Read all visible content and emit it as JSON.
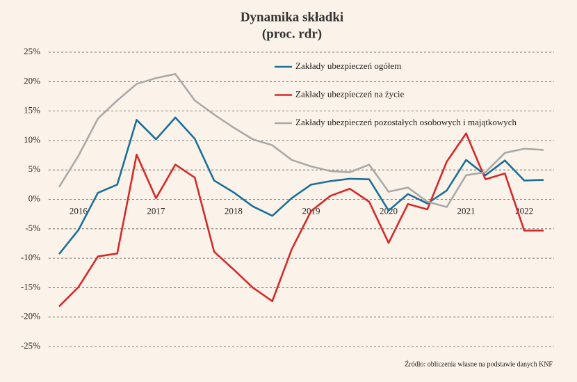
{
  "chart_data": {
    "type": "line",
    "title": "Dynamika składki",
    "subtitle": "(proc. rdr)",
    "source": "Źródło: obliczenia własne na podstawie danych KNF",
    "categories": [
      null,
      "2016",
      null,
      null,
      null,
      "2017",
      null,
      null,
      null,
      "2018",
      null,
      null,
      null,
      "2019",
      null,
      null,
      null,
      "2020",
      null,
      null,
      null,
      "2021",
      null,
      null,
      "2022",
      null
    ],
    "series": [
      {
        "name": "Zakłady ubezpieczeń ogółem",
        "color": "#1b6f98",
        "values": [
          -9.3,
          -5.2,
          1.1,
          2.5,
          13.5,
          10.2,
          13.9,
          10.3,
          3.2,
          1.2,
          -1.2,
          -2.8,
          0.2,
          2.5,
          3.1,
          3.5,
          3.4,
          -1.9,
          0.9,
          -0.7,
          1.5,
          6.7,
          4.1,
          6.6,
          3.2,
          3.3
        ]
      },
      {
        "name": "Zakłady ubezpieczeń na życie",
        "color": "#d42a2a",
        "values": [
          -18.2,
          -14.9,
          -9.7,
          -9.2,
          7.6,
          0.2,
          5.9,
          3.7,
          -8.9,
          -11.9,
          -15.0,
          -17.3,
          -8.5,
          -2.0,
          0.6,
          1.8,
          -0.4,
          -7.4,
          -0.8,
          -1.7,
          6.4,
          11.2,
          3.4,
          4.4,
          -5.3,
          -5.3
        ]
      },
      {
        "name": "Zakłady ubezpieczeń pozostałych osobowych i majątkowych",
        "color": "#a9a9a9",
        "values": [
          2.1,
          7.4,
          13.7,
          16.8,
          19.6,
          20.6,
          21.3,
          16.8,
          14.4,
          12.2,
          10.2,
          9.2,
          6.7,
          5.6,
          4.8,
          4.6,
          5.9,
          1.3,
          2.0,
          -0.4,
          -1.3,
          4.1,
          4.6,
          7.9,
          8.6,
          8.4
        ]
      }
    ],
    "ylim": [
      -25,
      25
    ],
    "yticks": [
      {
        "value": 25,
        "label": "25%"
      },
      {
        "value": 20,
        "label": "20%"
      },
      {
        "value": 15,
        "label": "15%"
      },
      {
        "value": 10,
        "label": "10%"
      },
      {
        "value": 5,
        "label": "5%"
      },
      {
        "value": 0,
        "label": "0%"
      },
      {
        "value": -5,
        "label": "-5%"
      },
      {
        "value": -10,
        "label": "-10%"
      },
      {
        "value": -15,
        "label": "-15%"
      },
      {
        "value": -20,
        "label": "-20%"
      },
      {
        "value": -25,
        "label": "-25%"
      }
    ],
    "grid": true,
    "legend": "top-right"
  }
}
